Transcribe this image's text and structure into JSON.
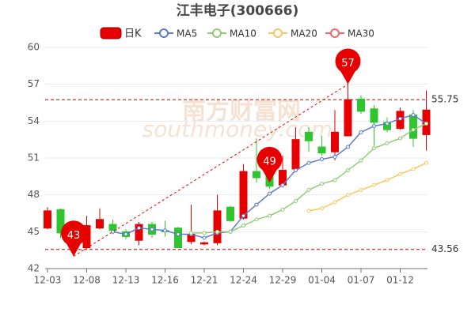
{
  "chart_data": {
    "type": "candlestick",
    "title": "江丰电子(300666)",
    "watermark": [
      "南方财富网",
      "southmoney.com"
    ],
    "candle_name": "日K",
    "up_color": "#e60000",
    "down_color": "#2ec52e",
    "categories": [
      "12-03",
      null,
      null,
      "12-08",
      null,
      null,
      "12-13",
      null,
      null,
      "12-16",
      null,
      null,
      "12-21",
      null,
      null,
      "12-24",
      null,
      null,
      "12-29",
      null,
      null,
      "01-04",
      null,
      null,
      "01-07",
      null,
      null,
      "01-12",
      null,
      null
    ],
    "open": [
      45.3,
      46.8,
      44.8,
      43.7,
      45.3,
      45.6,
      45.0,
      44.3,
      45.6,
      45.1,
      45.3,
      44.2,
      44.0,
      44.1,
      47.0,
      46.1,
      49.9,
      49.6,
      48.8,
      50.1,
      53.1,
      51.9,
      51.5,
      52.8,
      55.8,
      55.0,
      53.9,
      53.4,
      54.5,
      52.9
    ],
    "high": [
      47.0,
      46.9,
      45.2,
      46.3,
      46.9,
      46.0,
      45.2,
      45.8,
      45.8,
      45.9,
      45.4,
      47.2,
      44.2,
      48.0,
      47.1,
      50.5,
      52.6,
      50.5,
      51.2,
      53.5,
      53.5,
      52.8,
      54.9,
      57.2,
      56.1,
      55.3,
      54.3,
      55.1,
      54.9,
      56.5
    ],
    "low": [
      45.2,
      44.5,
      43.56,
      43.7,
      45.2,
      44.8,
      44.4,
      43.9,
      44.5,
      44.6,
      43.7,
      44.0,
      43.9,
      43.9,
      45.8,
      46.0,
      49.0,
      48.5,
      48.6,
      50.0,
      51.5,
      51.2,
      50.8,
      52.8,
      54.6,
      52.0,
      53.1,
      53.3,
      51.9,
      51.6
    ],
    "close": [
      46.7,
      44.9,
      44.1,
      45.5,
      46.0,
      45.1,
      44.6,
      45.6,
      44.8,
      45.0,
      43.7,
      44.8,
      44.1,
      46.7,
      45.9,
      49.9,
      49.4,
      48.7,
      50.0,
      52.5,
      52.4,
      51.4,
      53.1,
      55.75,
      54.8,
      53.9,
      53.3,
      54.8,
      52.6,
      54.9
    ],
    "series": [
      {
        "name": "MA5",
        "color": "#5b7bc9",
        "values": [
          null,
          null,
          null,
          null,
          null,
          45.0,
          44.8,
          45.3,
          45.2,
          45.1,
          44.8,
          44.8,
          44.5,
          44.9,
          45.0,
          46.3,
          47.2,
          48.1,
          48.8,
          50.0,
          50.6,
          50.9,
          51.1,
          51.9,
          53.1,
          53.6,
          53.8,
          54.2,
          54.5,
          53.8
        ]
      },
      {
        "name": "MA10",
        "color": "#91cc75",
        "values": [
          null,
          null,
          null,
          null,
          null,
          null,
          null,
          null,
          null,
          null,
          null,
          44.9,
          44.9,
          45.0,
          45.0,
          45.5,
          46.0,
          46.3,
          46.8,
          47.5,
          48.4,
          48.9,
          49.2,
          50.0,
          50.8,
          51.8,
          52.2,
          52.6,
          53.3,
          53.8
        ]
      },
      {
        "name": "MA20",
        "color": "#fac858",
        "values": [
          null,
          null,
          null,
          null,
          null,
          null,
          null,
          null,
          null,
          null,
          null,
          null,
          null,
          null,
          null,
          null,
          null,
          null,
          null,
          null,
          46.7,
          46.9,
          47.4,
          48.0,
          48.4,
          48.8,
          49.2,
          49.7,
          50.1,
          50.6
        ]
      },
      {
        "name": "MA30",
        "color": "#ee6666",
        "values": [
          null,
          null,
          null,
          null,
          null,
          null,
          null,
          null,
          null,
          null,
          null,
          null,
          null,
          null,
          null,
          null,
          null,
          null,
          null,
          null,
          null,
          null,
          null,
          null,
          null,
          null,
          null,
          null,
          null,
          null
        ]
      }
    ],
    "pins": [
      {
        "index": 23,
        "value": 57
      },
      {
        "index": 17,
        "value": 49
      },
      {
        "index": 2,
        "value": 43
      }
    ],
    "pin_color": "#e60000",
    "ref_lines": [
      55.75,
      43.56
    ],
    "ylim": [
      42,
      60
    ],
    "yticks": [
      42,
      45,
      48,
      51,
      54,
      57,
      60
    ],
    "grid": true
  }
}
